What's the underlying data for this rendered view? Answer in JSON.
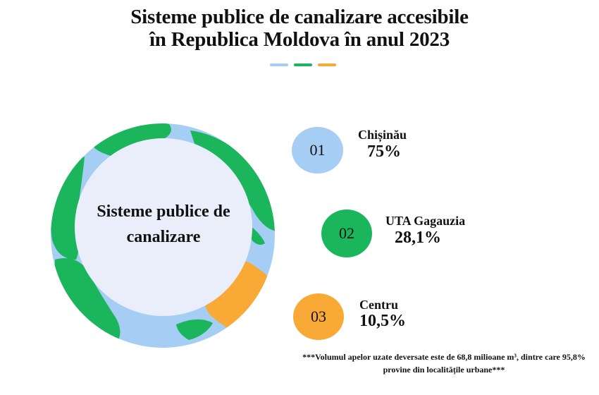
{
  "title": {
    "line1": "Sisteme publice de canalizare accesibile",
    "line2": "în Republica Moldova în anul 2023"
  },
  "colors": {
    "blue": "#a6cdf3",
    "green": "#1bb55c",
    "orange": "#f8a936",
    "inner": "#eaeefb"
  },
  "center_label": {
    "line1": "Sisteme publice de",
    "line2": "canalizare"
  },
  "footnote": {
    "line1": "***Volumul apelor uzate deversate este de 68,8 milioane m³, dintre care 95,8%",
    "line2": "provine din localitățile urbane***"
  },
  "chart_data": {
    "type": "infographic",
    "title": "Sisteme publice de canalizare accesibile în Republica Moldova în anul 2023",
    "unit": "%",
    "items": [
      {
        "number": "01",
        "name": "Chișinău",
        "value": 75,
        "label": "75%",
        "color": "#a6cdf3"
      },
      {
        "number": "02",
        "name": "UTA Gagauzia",
        "value": 28.1,
        "label": "28,1%",
        "color": "#1bb55c"
      },
      {
        "number": "03",
        "name": "Centru",
        "value": 10.5,
        "label": "10,5%",
        "color": "#f8a936"
      }
    ]
  }
}
